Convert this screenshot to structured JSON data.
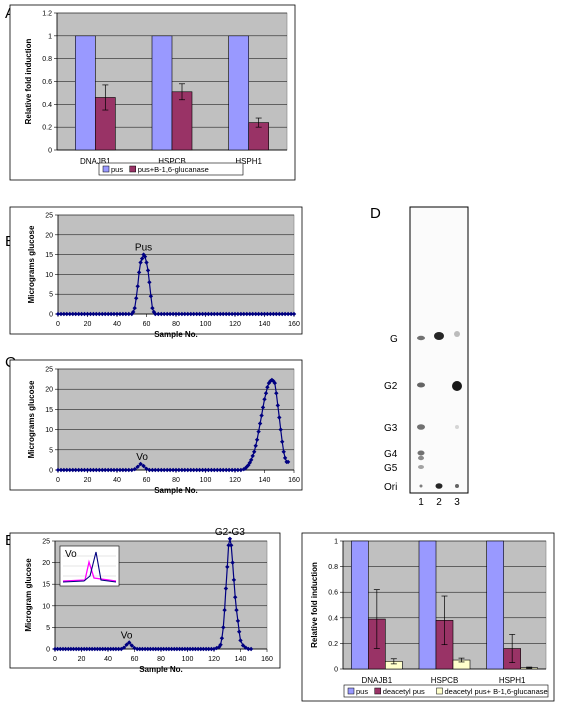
{
  "panel_labels": [
    "A",
    "B",
    "C",
    "D",
    "E",
    "F"
  ],
  "colors": {
    "pus": "#9999ff",
    "glucanase": "#993366",
    "deacetyl_glucanase": "#ffffcc",
    "line": "#000080",
    "inset_pink": "#ff00ff",
    "plot_bg": "#c0c0c0"
  },
  "chart_data": [
    {
      "id": "A",
      "type": "bar",
      "categories": [
        "DNAJB1",
        "HSPCB",
        "HSPH1"
      ],
      "ylabel": "Relative fold induction",
      "ylim": [
        0,
        1.2
      ],
      "yticks": [
        0,
        0.2,
        0.4,
        0.6,
        0.8,
        1,
        1.2
      ],
      "ytick_labels": [
        "0",
        "0.2",
        "0.4",
        "0.6",
        "0.8",
        "1",
        "1.2"
      ],
      "grid": true,
      "legend": "bottom",
      "series": [
        {
          "name": "pus",
          "values": [
            1,
            1,
            1
          ],
          "errors": [
            0,
            0,
            0
          ]
        },
        {
          "name": "pus+B-1,6-glucanase",
          "values": [
            0.46,
            0.51,
            0.24
          ],
          "errors": [
            0.11,
            0.07,
            0.04
          ]
        }
      ]
    },
    {
      "id": "B",
      "type": "line",
      "xlabel": "Sample No.",
      "ylabel": "Micrograms glucose",
      "xlim": [
        0,
        160
      ],
      "ylim": [
        0,
        25
      ],
      "xticks": [
        0,
        20,
        40,
        60,
        80,
        100,
        120,
        140,
        160
      ],
      "yticks": [
        0,
        5,
        10,
        15,
        20,
        25
      ],
      "annotations": [
        "Pus"
      ],
      "grid": true,
      "x": [
        0,
        2,
        4,
        6,
        8,
        10,
        12,
        14,
        16,
        18,
        20,
        22,
        24,
        26,
        28,
        30,
        32,
        34,
        36,
        38,
        40,
        42,
        44,
        46,
        48,
        50,
        51,
        52,
        53,
        54,
        55,
        56,
        57,
        58,
        59,
        60,
        61,
        62,
        63,
        64,
        65,
        66,
        68,
        70,
        72,
        74,
        76,
        78,
        80,
        82,
        84,
        86,
        88,
        90,
        92,
        94,
        96,
        98,
        100,
        102,
        104,
        106,
        108,
        110,
        112,
        114,
        116,
        118,
        120,
        122,
        124,
        126,
        128,
        130,
        132,
        134,
        136,
        138,
        140,
        142,
        144,
        146,
        148,
        150,
        152,
        154,
        156,
        158,
        160
      ],
      "y": [
        0,
        0,
        0,
        0,
        0,
        0,
        0,
        0,
        0,
        0,
        0,
        0,
        0,
        0,
        0,
        0,
        0,
        0,
        0,
        0,
        0,
        0,
        0,
        0,
        0,
        0,
        0.5,
        1.5,
        4,
        7,
        10.5,
        13,
        14,
        15,
        14.5,
        13,
        11,
        8,
        4.5,
        1.5,
        0.5,
        0,
        0,
        0,
        0,
        0,
        0,
        0,
        0,
        0,
        0,
        0,
        0,
        0,
        0,
        0,
        0,
        0,
        0,
        0,
        0,
        0,
        0,
        0,
        0,
        0,
        0,
        0,
        0,
        0,
        0,
        0,
        0,
        0,
        0,
        0,
        0,
        0,
        0,
        0,
        0,
        0,
        0,
        0,
        0,
        0,
        0,
        0,
        0
      ]
    },
    {
      "id": "C",
      "type": "line",
      "xlabel": "Sample No.",
      "ylabel": "Micrograms glucose",
      "xlim": [
        0,
        160
      ],
      "ylim": [
        0,
        25
      ],
      "xticks": [
        0,
        20,
        40,
        60,
        80,
        100,
        120,
        140,
        160
      ],
      "yticks": [
        0,
        5,
        10,
        15,
        20,
        25
      ],
      "annotations": [
        "Vo"
      ],
      "grid": true,
      "x": [
        0,
        2,
        4,
        6,
        8,
        10,
        12,
        14,
        16,
        18,
        20,
        22,
        24,
        26,
        28,
        30,
        32,
        34,
        36,
        38,
        40,
        42,
        44,
        46,
        48,
        50,
        52,
        54,
        56,
        58,
        60,
        62,
        64,
        66,
        68,
        70,
        72,
        74,
        76,
        78,
        80,
        82,
        84,
        86,
        88,
        90,
        92,
        94,
        96,
        98,
        100,
        102,
        104,
        106,
        108,
        110,
        112,
        114,
        116,
        118,
        120,
        122,
        124,
        126,
        127,
        128,
        129,
        130,
        131,
        132,
        133,
        134,
        135,
        136,
        137,
        138,
        139,
        140,
        141,
        142,
        143,
        144,
        145,
        146,
        147,
        148,
        149,
        150,
        151,
        152,
        153,
        154,
        155,
        156
      ],
      "y": [
        0,
        0,
        0,
        0,
        0,
        0,
        0,
        0,
        0,
        0,
        0,
        0,
        0,
        0,
        0,
        0,
        0,
        0,
        0,
        0,
        0,
        0,
        0,
        0,
        0,
        0,
        0.2,
        0.8,
        1.5,
        1,
        0.3,
        0,
        0,
        0,
        0,
        0,
        0,
        0,
        0,
        0,
        0,
        0,
        0,
        0,
        0,
        0,
        0,
        0,
        0,
        0,
        0,
        0,
        0,
        0,
        0,
        0,
        0,
        0,
        0,
        0,
        0,
        0,
        0,
        0.2,
        0.4,
        0.8,
        1.2,
        1.8,
        2.5,
        3.5,
        4.5,
        6,
        7.5,
        9.5,
        11.5,
        13.5,
        15.5,
        17.5,
        19,
        20.5,
        21.5,
        22,
        22.3,
        22,
        21.5,
        19,
        16,
        13,
        10,
        7,
        4.5,
        3,
        2,
        2
      ]
    },
    {
      "id": "D",
      "type": "other",
      "gel_labels": [
        "G",
        "G2",
        "G3",
        "G4",
        "G5",
        "Ori"
      ],
      "lanes": [
        "1",
        "2",
        "3"
      ]
    },
    {
      "id": "E",
      "type": "line",
      "xlabel": "Sample No.",
      "ylabel": "Microgram glucose",
      "xlim": [
        0,
        160
      ],
      "ylim": [
        0,
        25
      ],
      "xticks": [
        0,
        20,
        40,
        60,
        80,
        100,
        120,
        140,
        160
      ],
      "yticks": [
        0,
        5,
        10,
        15,
        20,
        25
      ],
      "annotations": [
        "G2-G3",
        "Vo"
      ],
      "inset_annotation": "Vo",
      "grid": true,
      "x": [
        0,
        2,
        4,
        6,
        8,
        10,
        12,
        14,
        16,
        18,
        20,
        22,
        24,
        26,
        28,
        30,
        32,
        34,
        36,
        38,
        40,
        42,
        44,
        46,
        48,
        50,
        52,
        54,
        56,
        58,
        60,
        62,
        64,
        66,
        68,
        70,
        72,
        74,
        76,
        78,
        80,
        82,
        84,
        86,
        88,
        90,
        92,
        94,
        96,
        98,
        100,
        102,
        104,
        106,
        108,
        110,
        112,
        114,
        116,
        118,
        120,
        122,
        124,
        125,
        126,
        127,
        128,
        129,
        130,
        131,
        132,
        133,
        134,
        135,
        136,
        137,
        138,
        139,
        140,
        142,
        144,
        146,
        148
      ],
      "y": [
        0,
        0,
        0,
        0,
        0,
        0,
        0,
        0,
        0,
        0,
        0,
        0,
        0,
        0,
        0,
        0,
        0,
        0,
        0,
        0,
        0,
        0,
        0,
        0,
        0,
        0,
        0.3,
        1,
        1.5,
        0.8,
        0.2,
        0,
        0,
        0,
        0,
        0,
        0,
        0,
        0,
        0,
        0,
        0,
        0,
        0,
        0,
        0,
        0,
        0,
        0,
        0,
        0,
        0,
        0,
        0,
        0,
        0,
        0,
        0,
        0,
        0,
        0,
        0.2,
        0.5,
        1,
        2.5,
        5,
        9,
        14,
        19,
        24,
        25.5,
        24,
        20,
        16,
        12,
        9,
        6.5,
        4,
        2,
        0.8,
        0.3,
        0,
        0
      ]
    },
    {
      "id": "F",
      "type": "bar",
      "categories": [
        "DNAJB1",
        "HSPCB",
        "HSPH1"
      ],
      "ylabel": "Relative fold induction",
      "ylim": [
        0,
        1
      ],
      "yticks": [
        0,
        0.2,
        0.4,
        0.6,
        0.8,
        1
      ],
      "ytick_labels": [
        "0",
        "0.2",
        "0.4",
        "0.6",
        "0.8",
        "1"
      ],
      "grid": true,
      "legend": "bottom",
      "series": [
        {
          "name": "pus",
          "values": [
            1,
            1,
            1
          ],
          "errors": [
            0,
            0,
            0
          ]
        },
        {
          "name": "deacetyl pus",
          "values": [
            0.39,
            0.38,
            0.16
          ],
          "errors": [
            0.23,
            0.19,
            0.11
          ]
        },
        {
          "name": "deacetyl pus+ B-1,6-glucanase",
          "values": [
            0.06,
            0.07,
            0.01
          ],
          "errors": [
            0.02,
            0.015,
            0.005
          ]
        }
      ]
    }
  ]
}
